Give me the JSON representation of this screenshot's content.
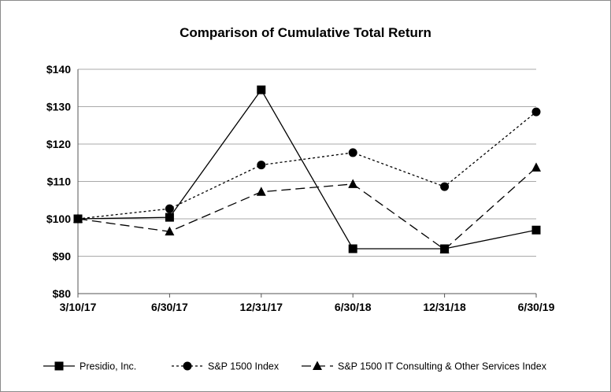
{
  "chart_data": {
    "type": "line",
    "title": "Comparison of Cumulative Total Return",
    "categories": [
      "3/10/17",
      "6/30/17",
      "12/31/17",
      "6/30/18",
      "12/31/18",
      "6/30/19"
    ],
    "y_tick_labels": [
      "$80",
      "$90",
      "$100",
      "$110",
      "$120",
      "$130",
      "$140"
    ],
    "ylim": [
      80,
      140
    ],
    "y_step": 10,
    "grid": "horizontal",
    "legend_position": "bottom",
    "series": [
      {
        "name": "Presidio, Inc.",
        "marker": "square",
        "dash": "solid",
        "values": [
          100,
          100.4,
          134.5,
          92,
          92,
          97
        ]
      },
      {
        "name": "S&P 1500 Index",
        "marker": "circle",
        "dash": "dotted",
        "values": [
          100,
          102.7,
          114.4,
          117.7,
          108.6,
          128.6
        ]
      },
      {
        "name": "S&P 1500 IT Consulting & Other Services Index",
        "marker": "triangle",
        "dash": "dashed",
        "values": [
          100,
          96.6,
          107.2,
          109.3,
          91.8,
          113.7
        ]
      }
    ]
  }
}
